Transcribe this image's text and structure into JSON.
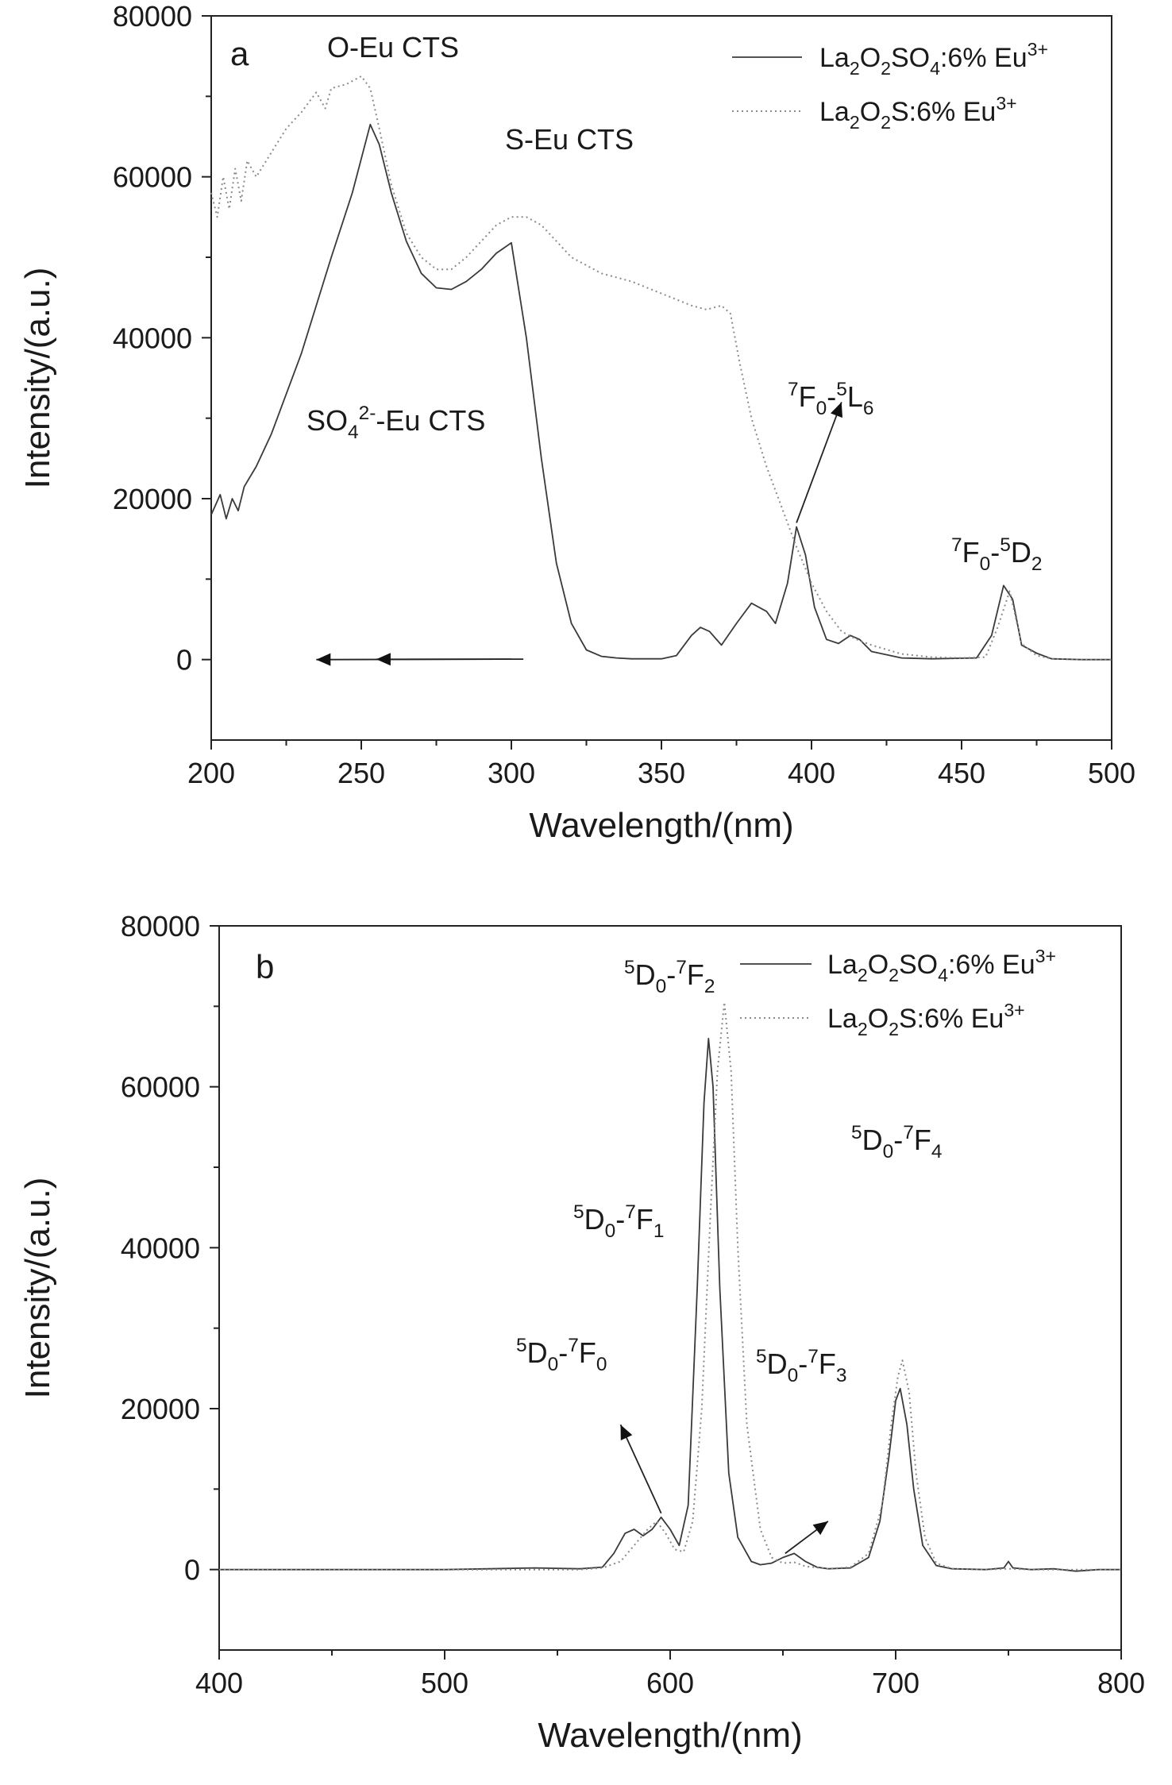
{
  "chart_data": [
    {
      "panel": "a",
      "type": "line",
      "xlabel": "Wavelength/(nm)",
      "ylabel": "Intensity/(a.u.)",
      "xlim": [
        200,
        500
      ],
      "ylim": [
        -10000,
        80000
      ],
      "xticks": [
        200,
        250,
        300,
        350,
        400,
        450,
        500
      ],
      "yticks": [
        0,
        20000,
        40000,
        60000,
        80000
      ],
      "legend_position": "top-right",
      "series": [
        {
          "name": "La2O2SO4:6% Eu3+",
          "legend_parts": [
            "La",
            "2",
            "O",
            "2",
            "SO",
            "4",
            ":6% Eu",
            "3+"
          ],
          "style": "solid",
          "x": [
            200,
            203,
            205,
            207,
            209,
            211,
            215,
            220,
            230,
            240,
            247,
            253,
            256,
            260,
            265,
            270,
            275,
            280,
            285,
            290,
            295,
            300,
            305,
            310,
            315,
            320,
            325,
            330,
            335,
            340,
            345,
            350,
            355,
            360,
            363,
            366,
            370,
            375,
            380,
            385,
            388,
            392,
            395,
            398,
            401,
            405,
            409,
            413,
            416,
            420,
            430,
            440,
            455,
            460,
            464,
            467,
            470,
            475,
            480,
            490,
            500
          ],
          "values": [
            18000,
            20500,
            17500,
            20000,
            18500,
            21500,
            24000,
            28000,
            38000,
            50000,
            58000,
            66500,
            64000,
            58000,
            52000,
            48000,
            46200,
            46000,
            47000,
            48500,
            50500,
            51800,
            40000,
            25000,
            12000,
            4500,
            1200,
            400,
            200,
            100,
            100,
            100,
            500,
            3000,
            4000,
            3500,
            1800,
            4500,
            7000,
            6000,
            4500,
            9500,
            16500,
            13000,
            6500,
            2500,
            2000,
            3000,
            2500,
            1000,
            200,
            100,
            200,
            3000,
            9200,
            7500,
            1800,
            800,
            100,
            0,
            0
          ]
        },
        {
          "name": "La2O2S:6% Eu3+",
          "legend_parts": [
            "La",
            "2",
            "O",
            "2",
            "S:6% Eu",
            "3+"
          ],
          "style": "dotted",
          "x": [
            200,
            202,
            204,
            206,
            208,
            210,
            212,
            215,
            220,
            225,
            230,
            235,
            238,
            240,
            245,
            250,
            253,
            256,
            260,
            265,
            270,
            275,
            280,
            285,
            290,
            295,
            300,
            305,
            310,
            315,
            320,
            330,
            340,
            350,
            360,
            365,
            370,
            373,
            376,
            380,
            385,
            390,
            395,
            400,
            405,
            410,
            415,
            420,
            430,
            440,
            450,
            458,
            462,
            466,
            470,
            475,
            480,
            490,
            500
          ],
          "values": [
            58000,
            55000,
            60000,
            56000,
            61000,
            57000,
            62000,
            60000,
            63000,
            66000,
            68000,
            70500,
            68500,
            71000,
            71500,
            72500,
            71000,
            66000,
            59000,
            53000,
            50000,
            48500,
            48500,
            50000,
            52000,
            54000,
            55000,
            55000,
            54000,
            52000,
            50000,
            48000,
            47000,
            45500,
            44000,
            43500,
            44000,
            43000,
            37000,
            30000,
            24000,
            19000,
            14000,
            9500,
            6000,
            3500,
            2500,
            1800,
            700,
            300,
            200,
            300,
            4000,
            8500,
            2000,
            500,
            100,
            0,
            0
          ]
        }
      ],
      "annotations": [
        {
          "parts": [
            "a"
          ],
          "subs": [
            0
          ]
        },
        {
          "parts": [
            "O-Eu CTS"
          ],
          "subs": [
            0
          ]
        },
        {
          "parts": [
            "S-Eu CTS"
          ],
          "subs": [
            0
          ]
        },
        {
          "parts": [
            "SO",
            "4",
            "2-",
            "-Eu CTS"
          ],
          "subs": [
            0,
            -1,
            1,
            0
          ]
        },
        {
          "parts": [
            "7",
            "F",
            "0",
            "-",
            "5",
            "L",
            "6"
          ],
          "subs": [
            1,
            0,
            -1,
            0,
            1,
            0,
            -1
          ]
        },
        {
          "parts": [
            "7",
            "F",
            "0",
            "-",
            "5",
            "D",
            "2"
          ],
          "subs": [
            1,
            0,
            -1,
            0,
            1,
            0,
            -1
          ]
        }
      ]
    },
    {
      "panel": "b",
      "type": "line",
      "xlabel": "Wavelength/(nm)",
      "ylabel": "Intensity/(a.u.)",
      "xlim": [
        400,
        800
      ],
      "ylim": [
        -10000,
        80000
      ],
      "xticks": [
        400,
        500,
        600,
        700,
        800
      ],
      "yticks": [
        0,
        20000,
        40000,
        60000,
        80000
      ],
      "legend_position": "top-right",
      "series": [
        {
          "name": "La2O2SO4:6% Eu3+",
          "legend_parts": [
            "La",
            "2",
            "O",
            "2",
            "SO",
            "4",
            ":6% Eu",
            "3+"
          ],
          "style": "solid",
          "x": [
            400,
            500,
            540,
            560,
            570,
            575,
            580,
            584,
            588,
            592,
            596,
            600,
            604,
            608,
            612,
            615,
            617,
            619,
            622,
            626,
            630,
            636,
            640,
            645,
            650,
            655,
            660,
            665,
            670,
            680,
            688,
            693,
            697,
            700,
            702,
            705,
            708,
            712,
            718,
            725,
            740,
            748,
            750,
            752,
            760,
            770,
            780,
            790,
            800
          ],
          "values": [
            0,
            0,
            200,
            100,
            300,
            2000,
            4500,
            5000,
            4200,
            5000,
            6500,
            5000,
            3000,
            8000,
            35000,
            58000,
            66000,
            60000,
            35000,
            12000,
            4000,
            1000,
            600,
            800,
            1500,
            2000,
            1000,
            300,
            100,
            200,
            1500,
            6000,
            14000,
            21000,
            22500,
            18000,
            10000,
            3000,
            500,
            100,
            0,
            200,
            1000,
            200,
            0,
            100,
            -200,
            0,
            0
          ]
        },
        {
          "name": "La2O2S:6% Eu3+",
          "legend_parts": [
            "La",
            "2",
            "O",
            "2",
            "S:6% Eu",
            "3+"
          ],
          "style": "dotted",
          "x": [
            400,
            500,
            560,
            570,
            578,
            584,
            590,
            594,
            598,
            602,
            606,
            610,
            614,
            618,
            621,
            624,
            627,
            630,
            634,
            640,
            645,
            650,
            655,
            660,
            670,
            680,
            688,
            694,
            698,
            701,
            703,
            706,
            709,
            713,
            718,
            725,
            740,
            750,
            760,
            780,
            800
          ],
          "values": [
            0,
            0,
            0,
            200,
            1000,
            3000,
            5000,
            6000,
            4500,
            2500,
            2200,
            6000,
            20000,
            45000,
            62000,
            70500,
            62000,
            40000,
            18000,
            5000,
            1500,
            800,
            900,
            400,
            100,
            300,
            2000,
            8000,
            18000,
            24000,
            26000,
            22000,
            12000,
            4000,
            800,
            100,
            0,
            100,
            0,
            0,
            0
          ]
        }
      ],
      "annotations": [
        {
          "parts": [
            "b"
          ],
          "subs": [
            0
          ]
        },
        {
          "parts": [
            "5",
            "D",
            "0",
            "-",
            "7",
            "F",
            "2"
          ],
          "subs": [
            1,
            0,
            -1,
            0,
            1,
            0,
            -1
          ]
        },
        {
          "parts": [
            "5",
            "D",
            "0",
            "-",
            "7",
            "F",
            "1"
          ],
          "subs": [
            1,
            0,
            -1,
            0,
            1,
            0,
            -1
          ]
        },
        {
          "parts": [
            "5",
            "D",
            "0",
            "-",
            "7",
            "F",
            "0"
          ],
          "subs": [
            1,
            0,
            -1,
            0,
            1,
            0,
            -1
          ]
        },
        {
          "parts": [
            "5",
            "D",
            "0",
            "-",
            "7",
            "F",
            "3"
          ],
          "subs": [
            1,
            0,
            -1,
            0,
            1,
            0,
            -1
          ]
        },
        {
          "parts": [
            "5",
            "D",
            "0",
            "-",
            "7",
            "F",
            "4"
          ],
          "subs": [
            1,
            0,
            -1,
            0,
            1,
            0,
            -1
          ]
        }
      ]
    }
  ]
}
